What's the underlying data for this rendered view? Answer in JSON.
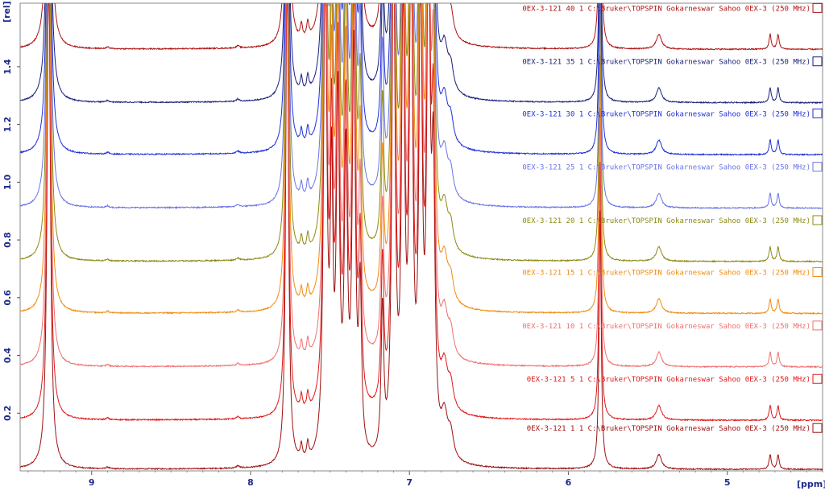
{
  "chart_data": {
    "type": "line",
    "title": "",
    "xlabel": "[ppm]",
    "ylabel": "[rel]",
    "xlim": [
      9.45,
      4.4
    ],
    "ylim": [
      0.0,
      1.62
    ],
    "x_ticks": [
      "9",
      "8",
      "7",
      "6",
      "5"
    ],
    "y_ticks": [
      "0.2",
      "0.4",
      "0.6",
      "0.8",
      "1.0",
      "1.2",
      "1.4"
    ],
    "series": [
      {
        "name": "0EX-3-121  40  1  C:\\Bruker\\TOPSPIN  Gokarneswar Sahoo 0EX-3 (250 MHz)",
        "color": "#b01212",
        "baseline": 1.46
      },
      {
        "name": "0EX-3-121  35  1  C:\\Bruker\\TOPSPIN  Gokarneswar Sahoo 0EX-3 (250 MHz)",
        "color": "#1a1f78",
        "baseline": 1.275
      },
      {
        "name": "0EX-3-121  30  1  C:\\Bruker\\TOPSPIN  Gokarneswar Sahoo 0EX-3 (250 MHz)",
        "color": "#1f2fd6",
        "baseline": 1.095
      },
      {
        "name": "0EX-3-121  25  1  C:\\Bruker\\TOPSPIN  Gokarneswar Sahoo 0EX-3 (250 MHz)",
        "color": "#6a74e6",
        "baseline": 0.91
      },
      {
        "name": "0EX-3-121  20  1  C:\\Bruker\\TOPSPIN  Gokarneswar Sahoo 0EX-3 (250 MHz)",
        "color": "#8c8a16",
        "baseline": 0.725
      },
      {
        "name": "0EX-3-121  15  1  C:\\Bruker\\TOPSPIN  Gokarneswar Sahoo 0EX-3 (250 MHz)",
        "color": "#f08c10",
        "baseline": 0.545
      },
      {
        "name": "0EX-3-121  10  1  C:\\Bruker\\TOPSPIN  Gokarneswar Sahoo 0EX-3 (250 MHz)",
        "color": "#f07070",
        "baseline": 0.36
      },
      {
        "name": "0EX-3-121  5  1  C:\\Bruker\\TOPSPIN  Gokarneswar Sahoo 0EX-3 (250 MHz)",
        "color": "#e01818",
        "baseline": 0.175
      },
      {
        "name": "0EX-3-121  1  1  C:\\Bruker\\TOPSPIN  Gokarneswar Sahoo 0EX-3 (250 MHz)",
        "color": "#a01010",
        "baseline": 0.005
      }
    ],
    "peaks": [
      {
        "ppm": 9.27,
        "height": 1.8,
        "width": 0.012
      },
      {
        "ppm": 8.9,
        "height": 0.006,
        "width": 0.01
      },
      {
        "ppm": 8.08,
        "height": 0.008,
        "width": 0.01
      },
      {
        "ppm": 7.77,
        "height": 1.8,
        "width": 0.01
      },
      {
        "ppm": 7.68,
        "height": 0.05,
        "width": 0.008
      },
      {
        "ppm": 7.64,
        "height": 0.055,
        "width": 0.008
      },
      {
        "ppm": 7.53,
        "height": 1.8,
        "width": 0.012
      },
      {
        "ppm": 7.49,
        "height": 0.9,
        "width": 0.01
      },
      {
        "ppm": 7.45,
        "height": 1.2,
        "width": 0.012
      },
      {
        "ppm": 7.4,
        "height": 1.0,
        "width": 0.012
      },
      {
        "ppm": 7.35,
        "height": 1.4,
        "width": 0.012
      },
      {
        "ppm": 7.31,
        "height": 0.55,
        "width": 0.01
      },
      {
        "ppm": 7.17,
        "height": 0.5,
        "width": 0.01
      },
      {
        "ppm": 7.1,
        "height": 1.8,
        "width": 0.012
      },
      {
        "ppm": 7.04,
        "height": 1.5,
        "width": 0.012
      },
      {
        "ppm": 6.99,
        "height": 1.8,
        "width": 0.012
      },
      {
        "ppm": 6.93,
        "height": 1.6,
        "width": 0.012
      },
      {
        "ppm": 6.88,
        "height": 1.8,
        "width": 0.012
      },
      {
        "ppm": 6.85,
        "height": 0.9,
        "width": 0.012
      },
      {
        "ppm": 6.78,
        "height": 0.14,
        "width": 0.025
      },
      {
        "ppm": 6.74,
        "height": 0.08,
        "width": 0.02
      },
      {
        "ppm": 5.8,
        "height": 0.9,
        "width": 0.008
      },
      {
        "ppm": 5.43,
        "height": 0.05,
        "width": 0.02
      },
      {
        "ppm": 4.73,
        "height": 0.05,
        "width": 0.008
      },
      {
        "ppm": 4.68,
        "height": 0.05,
        "width": 0.008
      }
    ]
  }
}
